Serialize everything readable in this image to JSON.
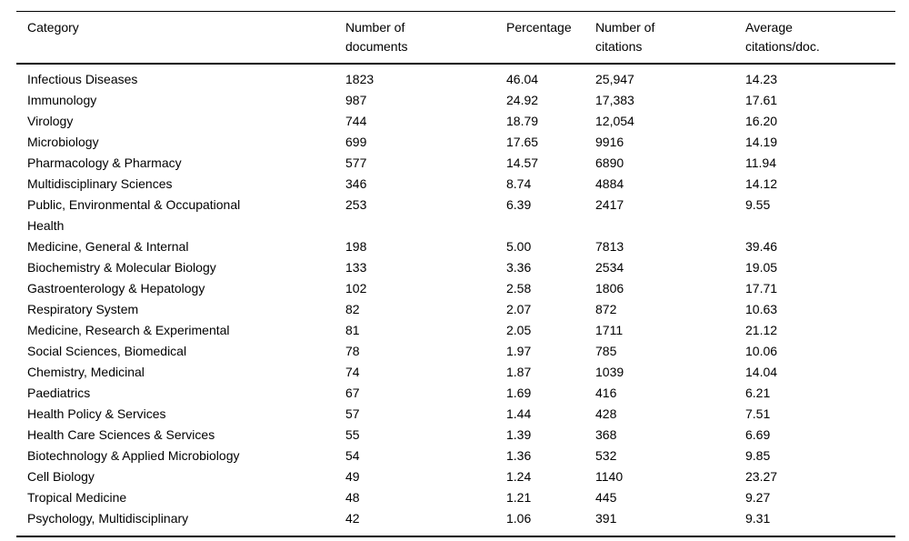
{
  "page": {
    "background_color": "#ffffff",
    "text_color": "#000000"
  },
  "table": {
    "column_keys": [
      "category",
      "documents",
      "percentage",
      "citations",
      "avg_citations"
    ],
    "columns": [
      "Category",
      "Number of\ndocuments",
      "Percentage",
      "Number of\ncitations",
      "Average\ncitations/doc."
    ],
    "rows": [
      [
        "Infectious Diseases",
        "1823",
        "46.04",
        "25,947",
        "14.23"
      ],
      [
        "Immunology",
        "987",
        "24.92",
        "17,383",
        "17.61"
      ],
      [
        "Virology",
        "744",
        "18.79",
        "12,054",
        "16.20"
      ],
      [
        "Microbiology",
        "699",
        "17.65",
        "9916",
        "14.19"
      ],
      [
        "Pharmacology & Pharmacy",
        "577",
        "14.57",
        "6890",
        "11.94"
      ],
      [
        "Multidisciplinary Sciences",
        "346",
        "8.74",
        "4884",
        "14.12"
      ],
      [
        "Public, Environmental & Occupational Health",
        "253",
        "6.39",
        "2417",
        "9.55"
      ],
      [
        "Medicine, General & Internal",
        "198",
        "5.00",
        "7813",
        "39.46"
      ],
      [
        "Biochemistry & Molecular Biology",
        "133",
        "3.36",
        "2534",
        "19.05"
      ],
      [
        "Gastroenterology & Hepatology",
        "102",
        "2.58",
        "1806",
        "17.71"
      ],
      [
        "Respiratory System",
        "82",
        "2.07",
        "872",
        "10.63"
      ],
      [
        "Medicine, Research & Experimental",
        "81",
        "2.05",
        "1711",
        "21.12"
      ],
      [
        "Social Sciences, Biomedical",
        "78",
        "1.97",
        "785",
        "10.06"
      ],
      [
        "Chemistry, Medicinal",
        "74",
        "1.87",
        "1039",
        "14.04"
      ],
      [
        "Paediatrics",
        "67",
        "1.69",
        "416",
        "6.21"
      ],
      [
        "Health Policy & Services",
        "57",
        "1.44",
        "428",
        "7.51"
      ],
      [
        "Health Care Sciences & Services",
        "55",
        "1.39",
        "368",
        "6.69"
      ],
      [
        "Biotechnology & Applied Microbiology",
        "54",
        "1.36",
        "532",
        "9.85"
      ],
      [
        "Cell Biology",
        "49",
        "1.24",
        "1140",
        "23.27"
      ],
      [
        "Tropical Medicine",
        "48",
        "1.21",
        "445",
        "9.27"
      ],
      [
        "Psychology, Multidisciplinary",
        "42",
        "1.06",
        "391",
        "9.31"
      ]
    ]
  }
}
